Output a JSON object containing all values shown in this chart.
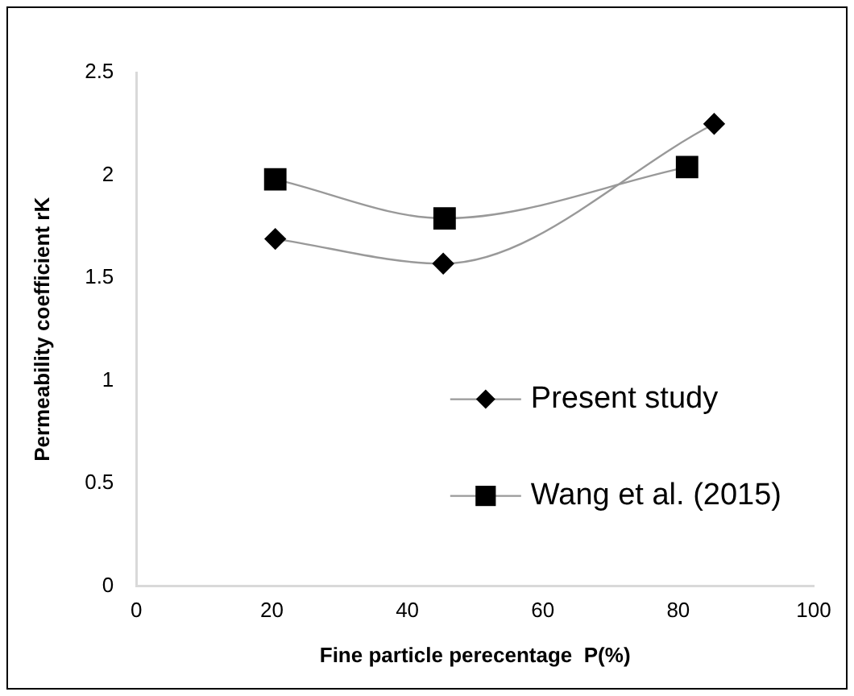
{
  "chart_data": {
    "type": "line",
    "xlabel": "Fine particle perecentage  P(%)",
    "ylabel": "Permeability coefficient rK",
    "xlim": [
      0,
      100
    ],
    "xticks": [
      0,
      20,
      40,
      60,
      80,
      100
    ],
    "ylim": [
      0,
      2.5
    ],
    "yticks": [
      0,
      0.5,
      1,
      1.5,
      2,
      2.5
    ],
    "grid": false,
    "legend": "bottom right",
    "series": [
      {
        "name": "Present study",
        "color": "#000000",
        "marker": "diamond",
        "x": [
          20.5,
          45.3,
          85.3
        ],
        "values": [
          1.69,
          1.57,
          2.25
        ]
      },
      {
        "name": "Wang et al. (2015)",
        "color": "#000000",
        "marker": "square",
        "x": [
          20.5,
          45.5,
          81.3
        ],
        "values": [
          1.98,
          1.79,
          2.04
        ]
      }
    ]
  }
}
